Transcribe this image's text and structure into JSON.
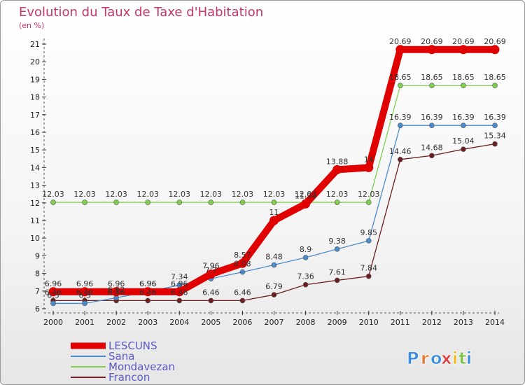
{
  "chart_data": {
    "type": "line",
    "title": "Evolution du Taux de Taxe d'Habitation",
    "unit_label": "(en %)",
    "x": [
      "2000",
      "2001",
      "2002",
      "2003",
      "2004",
      "2005",
      "2006",
      "2007",
      "2008",
      "2009",
      "2010",
      "2011",
      "2012",
      "2013",
      "2014"
    ],
    "ylim": [
      6,
      21
    ],
    "y_ticks": [
      "6",
      "7",
      "8",
      "9",
      "10",
      "11",
      "12",
      "13",
      "14",
      "15",
      "16",
      "17",
      "18",
      "19",
      "20",
      "21"
    ],
    "grid": false,
    "legend_position": "bottom-left",
    "series": [
      {
        "name": "LESCUNS",
        "color": "#e00000",
        "values": [
          6.96,
          6.96,
          6.96,
          6.96,
          6.96,
          7.96,
          8.57,
          11,
          11.94,
          13.88,
          14,
          20.69,
          20.69,
          20.69,
          20.69
        ],
        "labels": [
          "6.96",
          "6.96",
          "6.96",
          "6.96",
          "6.96",
          "7.96",
          "8.57",
          "11",
          "11.94",
          "13.88",
          "14",
          "20.69",
          "20.69",
          "20.69",
          "20.69"
        ]
      },
      {
        "name": "Sana",
        "color": "#4a8ccc",
        "values": [
          6.3,
          6.3,
          6.62,
          6.96,
          7.34,
          7.7,
          8.08,
          8.48,
          8.9,
          9.38,
          9.85,
          16.39,
          16.39,
          16.39,
          16.39
        ],
        "labels": [
          "6.3",
          "6.3",
          "6.62",
          "6.96",
          "7.34",
          "7.7",
          "8.08",
          "8.48",
          "8.9",
          "9.38",
          "9.85",
          "16.39",
          "16.39",
          "16.39",
          "16.39"
        ]
      },
      {
        "name": "Mondavezan",
        "color": "#80d050",
        "values": [
          12.03,
          12.03,
          12.03,
          12.03,
          12.03,
          12.03,
          12.03,
          12.03,
          12.03,
          12.03,
          12.03,
          18.65,
          18.65,
          18.65,
          18.65
        ],
        "labels": [
          "12.03",
          "12.03",
          "12.03",
          "12.03",
          "12.03",
          "12.03",
          "12.03",
          "12.03",
          "12.03",
          "12.03",
          "12.03",
          "18.65",
          "18.65",
          "18.65",
          "18.65"
        ]
      },
      {
        "name": "Francon",
        "color": "#6e1e1e",
        "values": [
          6.46,
          6.46,
          6.46,
          6.46,
          6.46,
          6.46,
          6.46,
          6.79,
          7.36,
          7.61,
          7.84,
          14.46,
          14.68,
          15.04,
          15.34
        ],
        "labels": [
          "6.46",
          "6.46",
          "6.46",
          "6.46",
          "6.46",
          "6.46",
          "6.46",
          "6.79",
          "7.36",
          "7.61",
          "7.84",
          "14.46",
          "14.68",
          "15.04",
          "15.34"
        ]
      }
    ]
  },
  "logo": {
    "text": "Proxiti"
  }
}
